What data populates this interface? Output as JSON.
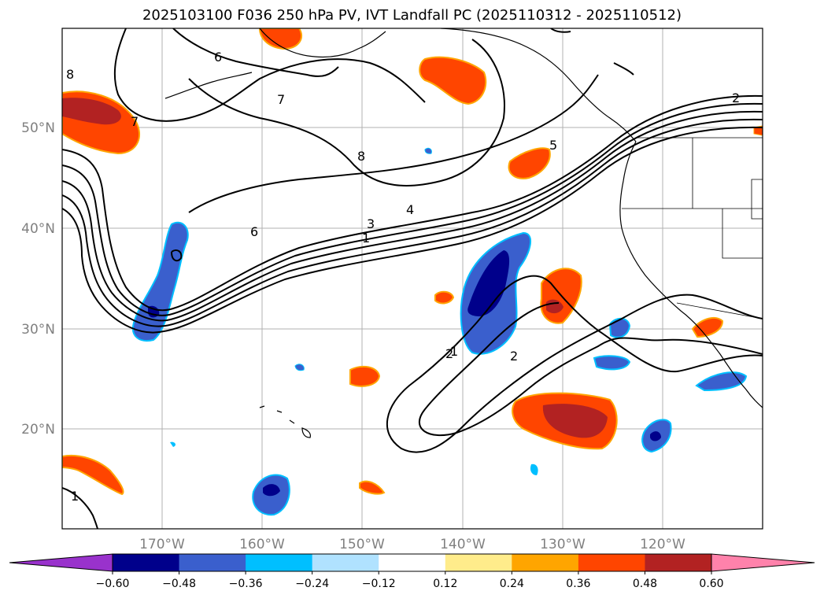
{
  "title": "2025103100 F036 250 hPa PV, IVT Landfall PC (2025110312 - 2025110512)",
  "lat_labels": [
    "50°N",
    "40°N",
    "30°N",
    "20°N"
  ],
  "lon_labels": [
    "170°W",
    "160°W",
    "150°W",
    "140°W",
    "130°W",
    "120°W"
  ],
  "colorbar": {
    "ticks": [
      "−0.60",
      "−0.48",
      "−0.36",
      "−0.24",
      "−0.12",
      "0.12",
      "0.24",
      "0.36",
      "0.48",
      "0.60"
    ],
    "colors": [
      "#9932cc",
      "#00008b",
      "#3a5fcd",
      "#00bfff",
      "#b0e2ff",
      "#ffffff",
      "#ffec8b",
      "#ffa500",
      "#ff4500",
      "#b22222",
      "#ff82ab"
    ]
  },
  "contour_labels": [
    "1",
    "2",
    "3",
    "4",
    "5",
    "6",
    "6",
    "7",
    "7",
    "8",
    "8",
    "1",
    "2",
    "2",
    "1"
  ]
}
